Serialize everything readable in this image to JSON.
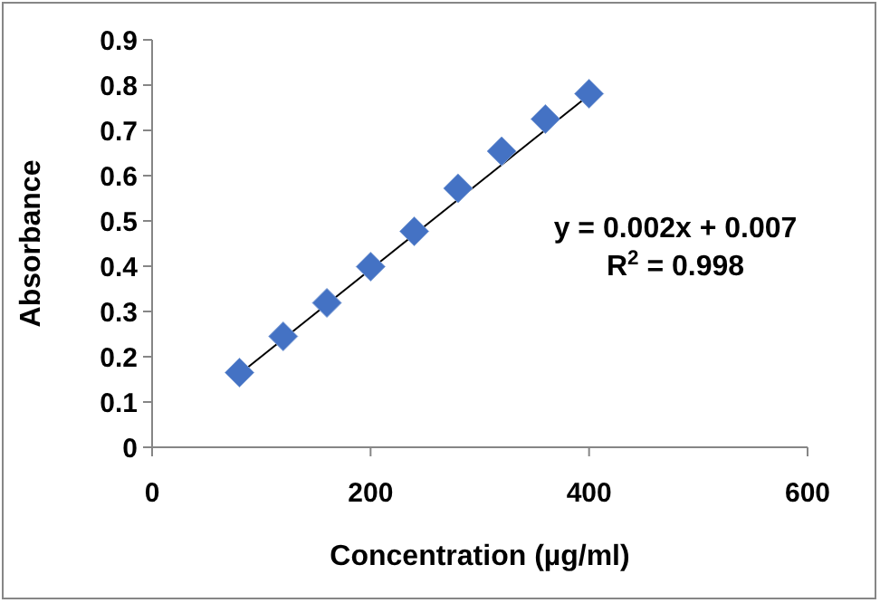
{
  "chart_data": {
    "type": "scatter",
    "xlabel": "Concentration (µg/ml)",
    "ylabel": "Absorbance",
    "series": [
      {
        "color": "#4472c4",
        "marker": "diamond",
        "x": [
          80,
          120,
          160,
          200,
          240,
          280,
          320,
          360,
          400
        ],
        "values": [
          0.165,
          0.245,
          0.319,
          0.399,
          0.477,
          0.572,
          0.654,
          0.725,
          0.781
        ]
      },
      {
        "type": "line",
        "color": "#000000",
        "marker": "none",
        "x": [
          80,
          400
        ],
        "values": [
          0.162,
          0.778
        ]
      }
    ],
    "xlim": [
      0,
      600
    ],
    "xticks": [
      0,
      200,
      400,
      600
    ],
    "ylim": [
      0,
      0.9
    ],
    "yticks": [
      0,
      0.1,
      0.2,
      0.3,
      0.4,
      0.5,
      0.6,
      0.7,
      0.8,
      0.9
    ],
    "grid": false,
    "annotations": [
      "y = 0.002x + 0.007",
      "R$^{2}$ = 0.998"
    ]
  }
}
